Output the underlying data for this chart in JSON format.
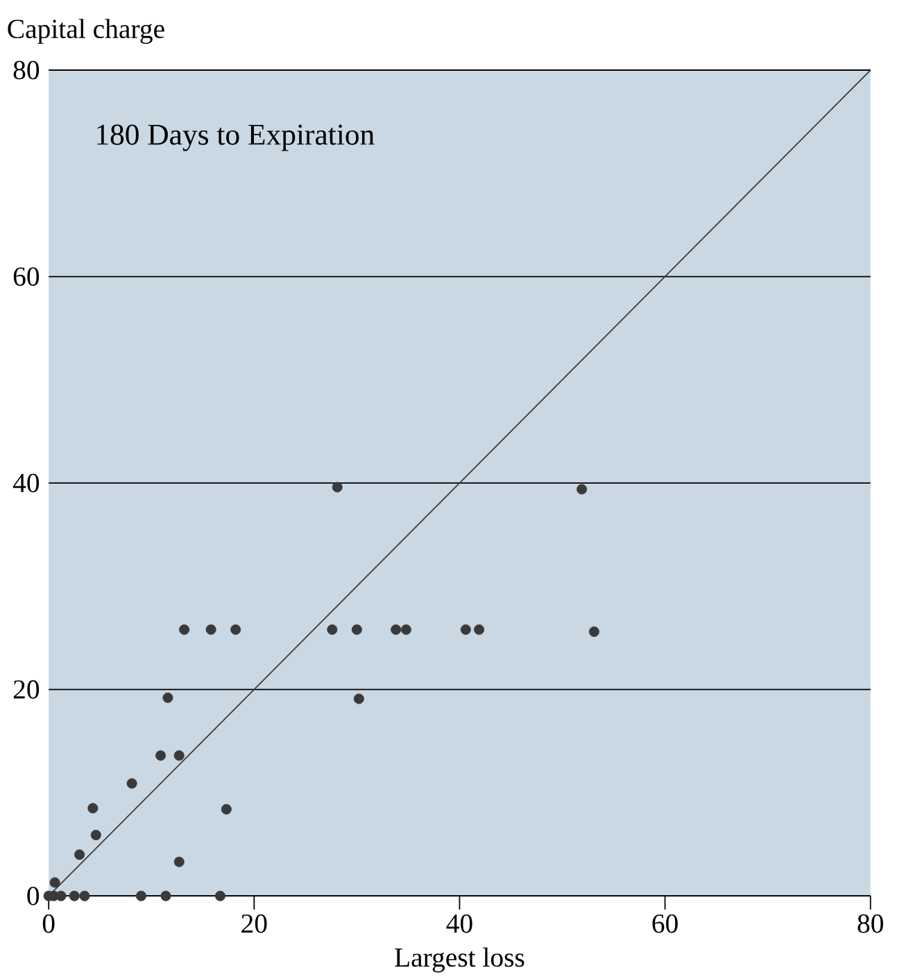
{
  "chart_data": {
    "type": "scatter",
    "title": "180 Days to Expiration",
    "xlabel": "Largest loss",
    "ylabel": "Capital charge",
    "xlim": [
      0,
      80
    ],
    "ylim": [
      0,
      80
    ],
    "xticks": [
      0,
      20,
      40,
      60,
      80
    ],
    "yticks": [
      0,
      20,
      40,
      60,
      80
    ],
    "grid": "y",
    "series": [
      {
        "color": "#3a3a3a",
        "marker": "circle",
        "x": [
          0,
          0.5,
          1.2,
          2.5,
          3.5,
          0.6,
          3.0,
          4.6,
          4.3,
          8.1,
          10.9,
          12.7,
          12.7,
          17.3,
          9.0,
          11.4,
          16.7,
          11.6,
          13.2,
          15.8,
          18.2,
          27.6,
          30.0,
          33.8,
          34.8,
          40.6,
          41.9,
          53.1,
          30.2,
          28.1,
          51.9
        ],
        "values": [
          0,
          0,
          0,
          0,
          0,
          1.3,
          4.0,
          5.9,
          8.5,
          10.9,
          13.6,
          13.6,
          3.3,
          8.4,
          0,
          0,
          0,
          19.2,
          25.8,
          25.8,
          25.8,
          25.8,
          25.8,
          25.8,
          25.8,
          25.8,
          25.8,
          25.6,
          19.1,
          39.6,
          39.4
        ]
      },
      {
        "type": "line",
        "color": "#3a3a3a",
        "marker": "none",
        "x": [
          0,
          80
        ],
        "values": [
          0,
          80
        ]
      }
    ]
  }
}
